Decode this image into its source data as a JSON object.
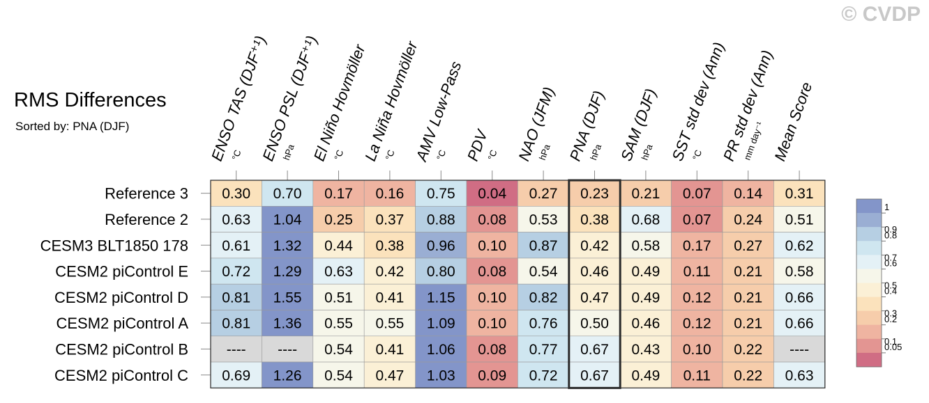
{
  "watermark": "© CVDP",
  "title": "RMS Differences",
  "subtitle": "Sorted by: PNA (DJF)",
  "chart_data": {
    "type": "heatmap",
    "columns": [
      {
        "label": "ENSO TAS (DJF⁺¹)",
        "unit": "°C"
      },
      {
        "label": "ENSO PSL (DJF⁺¹)",
        "unit": "hPa"
      },
      {
        "label": "El Niño Hovmöller",
        "unit": "°C"
      },
      {
        "label": "La Niña Hovmöller",
        "unit": "°C"
      },
      {
        "label": "AMV Low-Pass",
        "unit": "°C"
      },
      {
        "label": "PDV",
        "unit": "°C"
      },
      {
        "label": "NAO (JFM)",
        "unit": "hPa"
      },
      {
        "label": "PNA (DJF)",
        "unit": "hPa"
      },
      {
        "label": "SAM (DJF)",
        "unit": "hPa"
      },
      {
        "label": "SST std dev (Ann)",
        "unit": "°C"
      },
      {
        "label": "PR std dev (Ann)",
        "unit": "mm day⁻¹"
      },
      {
        "label": "Mean Score",
        "unit": ""
      }
    ],
    "rows": [
      "Reference 3",
      "Reference 2",
      "CESM3 BLT1850 178",
      "CESM2 piControl E",
      "CESM2 piControl D",
      "CESM2 piControl A",
      "CESM2 piControl B",
      "CESM2 piControl C"
    ],
    "values": [
      [
        0.3,
        0.7,
        0.17,
        0.16,
        0.75,
        0.04,
        0.27,
        0.23,
        0.21,
        0.07,
        0.14,
        0.31
      ],
      [
        0.63,
        1.04,
        0.25,
        0.37,
        0.88,
        0.08,
        0.53,
        0.38,
        0.68,
        0.07,
        0.24,
        0.51
      ],
      [
        0.61,
        1.32,
        0.44,
        0.38,
        0.96,
        0.1,
        0.87,
        0.42,
        0.58,
        0.17,
        0.27,
        0.62
      ],
      [
        0.72,
        1.29,
        0.63,
        0.42,
        0.8,
        0.08,
        0.54,
        0.46,
        0.49,
        0.11,
        0.21,
        0.58
      ],
      [
        0.81,
        1.55,
        0.51,
        0.41,
        1.15,
        0.1,
        0.82,
        0.47,
        0.49,
        0.12,
        0.21,
        0.66
      ],
      [
        0.81,
        1.36,
        0.55,
        0.55,
        1.09,
        0.1,
        0.76,
        0.5,
        0.46,
        0.12,
        0.21,
        0.66
      ],
      [
        null,
        null,
        0.54,
        0.41,
        1.06,
        0.08,
        0.77,
        0.67,
        0.43,
        0.1,
        0.22,
        null
      ],
      [
        0.69,
        1.26,
        0.54,
        0.47,
        1.03,
        0.09,
        0.72,
        0.67,
        0.49,
        0.11,
        0.22,
        0.63
      ]
    ],
    "missing_label": "----",
    "highlight_column": "PNA (DJF)",
    "colorbar": {
      "levels": [
        0.05,
        0.1,
        0.2,
        0.3,
        0.4,
        0.5,
        0.6,
        0.7,
        0.8,
        0.9,
        1
      ],
      "labels": [
        "1",
        "0.9",
        "0.8",
        "0.7",
        "0.6",
        "0.5",
        "0.4",
        "0.3",
        "0.2",
        "0.1",
        "0.05"
      ],
      "colors": [
        "#d06d84",
        "#e39592",
        "#efb4a1",
        "#f6cdab",
        "#fbe2bc",
        "#fbf0d6",
        "#f6f6ea",
        "#e4f1f6",
        "#cfe6f0",
        "#b6cfe3",
        "#9aaed3",
        "#8395c9"
      ],
      "missing_color": "#d9d9d9"
    }
  }
}
